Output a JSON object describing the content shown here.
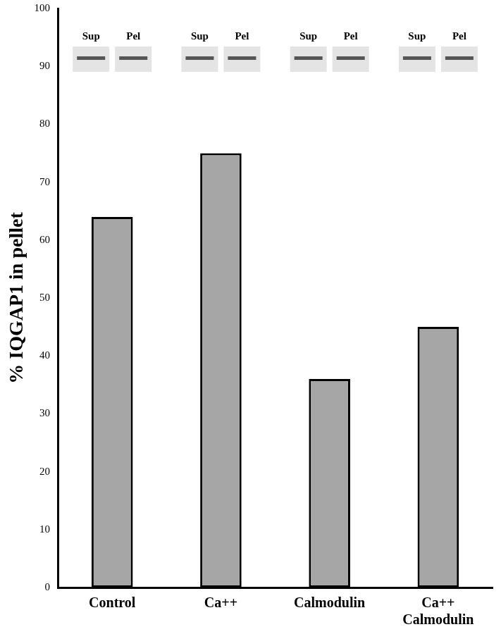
{
  "chart_data": {
    "type": "bar",
    "y_label": "% IQGAP1 in pellet",
    "categories": [
      "Control",
      "Ca++",
      "Calmodulin",
      "Ca++\nCalmodulin"
    ],
    "values": [
      64,
      75,
      36,
      45
    ],
    "color": "#a6a6a6",
    "ylim": [
      0,
      100
    ],
    "yticks": [
      0,
      10,
      20,
      30,
      40,
      50,
      60,
      70,
      80,
      90,
      100
    ],
    "grid": false,
    "annotations": [
      [
        "Sup",
        "Pel"
      ],
      [
        "Sup",
        "Pel"
      ],
      [
        "Sup",
        "Pel"
      ],
      [
        "Sup",
        "Pel"
      ]
    ]
  }
}
